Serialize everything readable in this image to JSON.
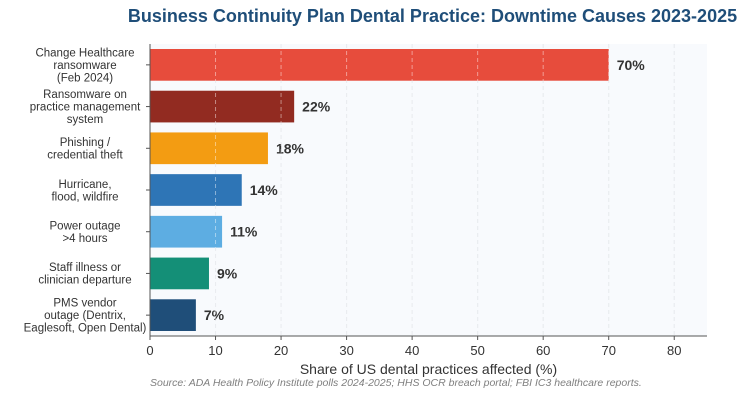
{
  "chart_data": {
    "type": "bar",
    "orientation": "horizontal",
    "title": "Business Continuity Plan Dental Practice: Downtime Causes 2023-2025",
    "xlabel": "Share of US dental practices affected (%)",
    "ylabel": "",
    "xlim": [
      0,
      85
    ],
    "xticks": [
      0,
      10,
      20,
      30,
      40,
      50,
      60,
      70,
      80
    ],
    "grid": true,
    "categories": [
      [
        "Change Healthcare",
        "ransomware",
        "(Feb 2024)"
      ],
      [
        "Ransomware on",
        "practice management",
        "system"
      ],
      [
        "Phishing /",
        "credential theft"
      ],
      [
        "Hurricane,",
        "flood, wildfire"
      ],
      [
        "Power outage",
        ">4 hours"
      ],
      [
        "Staff illness or",
        "clinician departure"
      ],
      [
        "PMS vendor",
        "outage (Dentrix,",
        "Eaglesoft, Open Dental)"
      ]
    ],
    "values": [
      70,
      22,
      18,
      14,
      11,
      9,
      7
    ],
    "value_labels": [
      "70%",
      "22%",
      "18%",
      "14%",
      "11%",
      "9%",
      "7%"
    ],
    "colors": [
      "#e74c3c",
      "#922b21",
      "#f39c12",
      "#2e75b6",
      "#5dade2",
      "#148f77",
      "#1f4e79"
    ],
    "source": "Source: ADA Health Policy Institute polls 2024-2025; HHS OCR breach portal; FBI IC3 healthcare reports."
  }
}
